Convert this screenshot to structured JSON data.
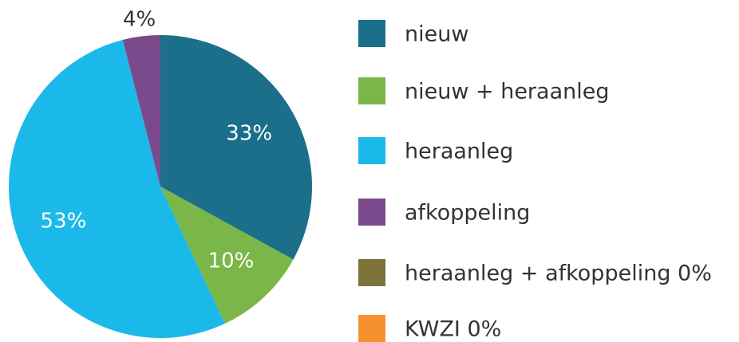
{
  "chart_data": {
    "type": "pie",
    "categories": [
      "nieuw",
      "nieuw + heraanleg",
      "heraanleg",
      "afkoppeling",
      "heraanleg + afkoppeling 0%",
      "KWZI 0%"
    ],
    "values": [
      33,
      10,
      53,
      4,
      0,
      0
    ],
    "value_labels": [
      "33%",
      "10%",
      "53%",
      "4%",
      null,
      null
    ],
    "colors": [
      "#1b6f8a",
      "#7ab648",
      "#1bb9ea",
      "#7b4a8c",
      "#7d733a",
      "#f5922f"
    ]
  }
}
